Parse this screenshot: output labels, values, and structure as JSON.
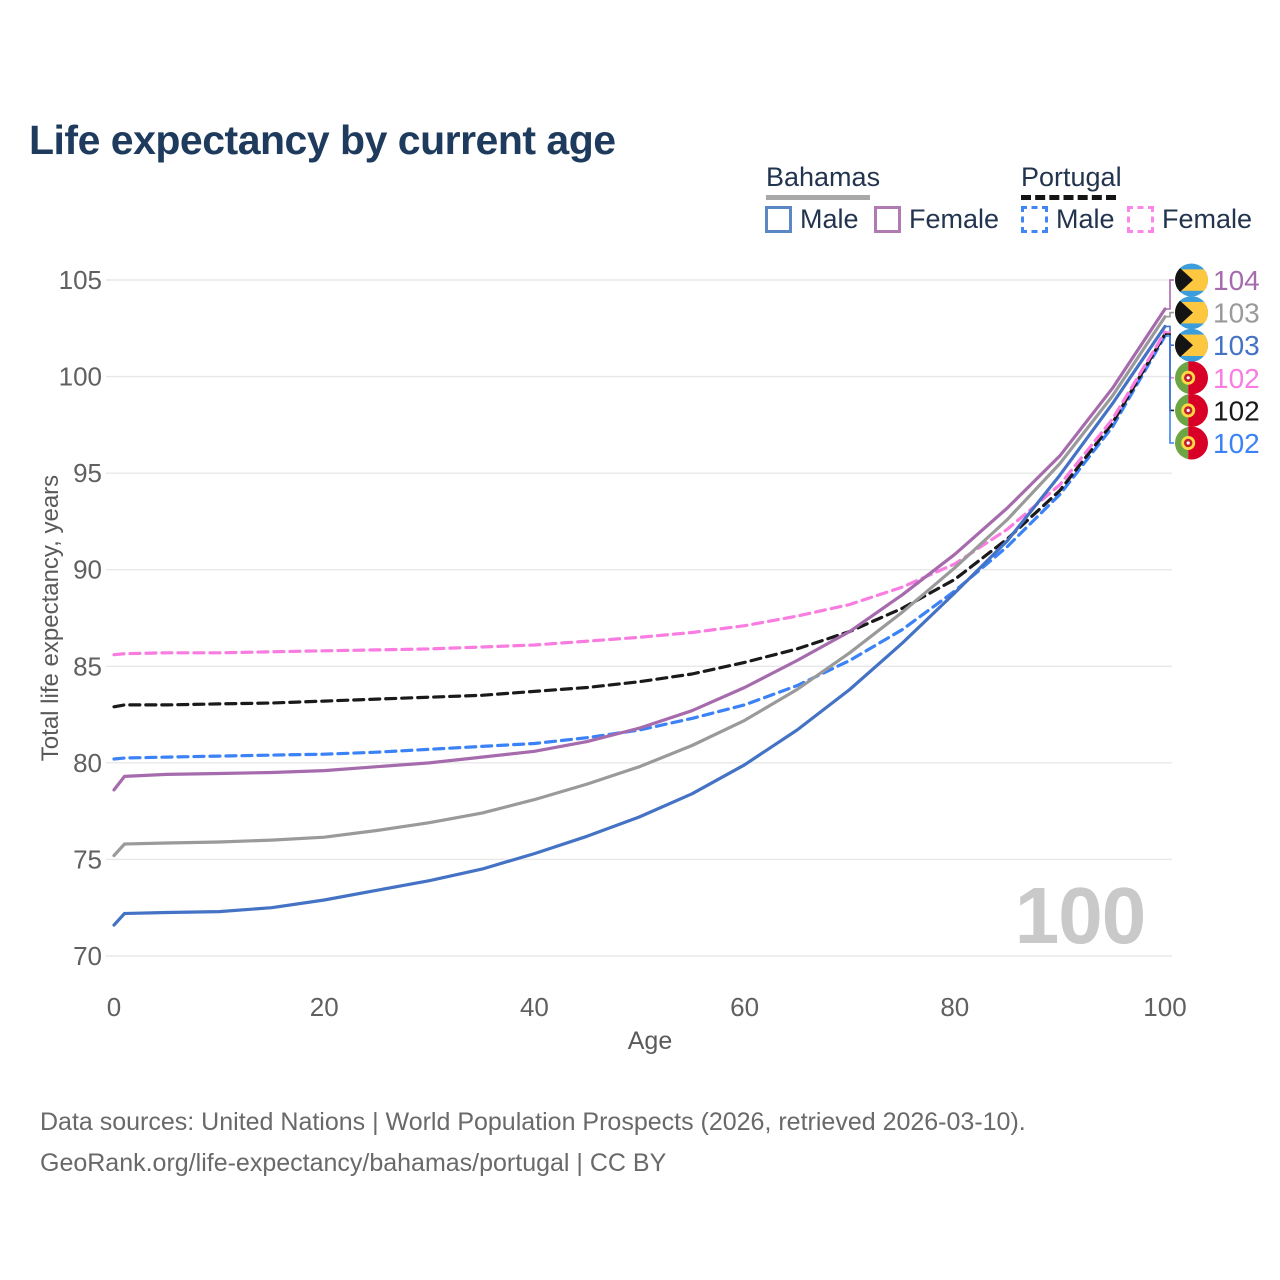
{
  "title": "Life expectancy by current age",
  "legend": {
    "bahamas": {
      "name": "Bahamas",
      "male": "Male",
      "female": "Female",
      "line_style": "solid",
      "line_color": "#a8a8a8"
    },
    "portugal": {
      "name": "Portugal",
      "male": "Male",
      "female": "Female",
      "line_style": "dashed",
      "line_color": "#141414"
    }
  },
  "watermark": "100",
  "footer": {
    "line1": "Data sources: United Nations | World Population Prospects (2026, retrieved 2026-03-10).",
    "line2": "GeoRank.org/life-expectancy/bahamas/portugal | CC BY"
  },
  "colors": {
    "title": "#1e3a5c",
    "axis_text": "#606060",
    "grid": "#e8e8e8",
    "watermark": "#c9c9c9",
    "footer": "#696969",
    "bahamas_male": "#4472c4",
    "bahamas_female": "#a66bad",
    "bahamas_total": "#9a9a9a",
    "portugal_male": "#3b82f6",
    "portugal_female": "#f97ce1",
    "portugal_total": "#1a1a1a"
  },
  "chart_data": {
    "type": "line",
    "title": "Life expectancy by current age",
    "xlabel": "Age",
    "ylabel": "Total life expectancy, years",
    "xlim": [
      0,
      100
    ],
    "ylim": [
      70,
      105
    ],
    "x_ticks": [
      0,
      20,
      40,
      60,
      80,
      100
    ],
    "y_ticks": [
      70,
      75,
      80,
      85,
      90,
      95,
      100,
      105
    ],
    "grid": "horizontal",
    "legend_position": "top-right",
    "ages": [
      0,
      1,
      5,
      10,
      15,
      20,
      25,
      30,
      35,
      40,
      45,
      50,
      55,
      60,
      65,
      70,
      75,
      80,
      85,
      90,
      95,
      100
    ],
    "series": [
      {
        "id": "bahamas-female",
        "name": "Bahamas Female",
        "color": "#a66bad",
        "style": "solid",
        "flag": "bahamas",
        "end_label": "104",
        "end_label_row": 0,
        "values": [
          78.6,
          79.3,
          79.4,
          79.45,
          79.5,
          79.6,
          79.8,
          80.0,
          80.3,
          80.6,
          81.1,
          81.8,
          82.7,
          83.9,
          85.3,
          86.8,
          88.7,
          90.8,
          93.2,
          95.9,
          99.4,
          103.5
        ]
      },
      {
        "id": "bahamas-total",
        "name": "Bahamas (both sexes)",
        "color": "#9a9a9a",
        "style": "solid",
        "flag": "bahamas",
        "end_label": "103",
        "end_label_row": 1,
        "values": [
          75.2,
          75.8,
          75.85,
          75.9,
          76.0,
          76.15,
          76.5,
          76.9,
          77.4,
          78.1,
          78.9,
          79.8,
          80.9,
          82.2,
          83.8,
          85.7,
          87.8,
          90.1,
          92.6,
          95.5,
          99.0,
          103.1
        ]
      },
      {
        "id": "bahamas-male",
        "name": "Bahamas Male",
        "color": "#4472c4",
        "style": "solid",
        "flag": "bahamas",
        "end_label": "103",
        "end_label_row": 2,
        "values": [
          71.6,
          72.2,
          72.25,
          72.3,
          72.5,
          72.9,
          73.4,
          73.9,
          74.5,
          75.3,
          76.2,
          77.2,
          78.4,
          79.9,
          81.7,
          83.8,
          86.2,
          88.8,
          91.5,
          94.9,
          98.6,
          102.6
        ]
      },
      {
        "id": "portugal-female",
        "name": "Portugal Female",
        "color": "#f97ce1",
        "style": "dashed",
        "flag": "portugal",
        "end_label": "102",
        "end_label_row": 3,
        "values": [
          85.6,
          85.65,
          85.7,
          85.7,
          85.75,
          85.8,
          85.85,
          85.9,
          86.0,
          86.1,
          86.3,
          86.5,
          86.75,
          87.1,
          87.6,
          88.2,
          89.1,
          90.3,
          92.1,
          94.4,
          97.8,
          102.3
        ]
      },
      {
        "id": "portugal-total",
        "name": "Portugal (both sexes)",
        "color": "#1a1a1a",
        "style": "dashed",
        "flag": "portugal",
        "end_label": "102",
        "end_label_row": 4,
        "values": [
          82.9,
          83.0,
          83.0,
          83.05,
          83.1,
          83.2,
          83.3,
          83.4,
          83.5,
          83.7,
          83.9,
          84.2,
          84.6,
          85.2,
          85.9,
          86.8,
          88.0,
          89.5,
          91.6,
          94.1,
          97.6,
          102.2
        ]
      },
      {
        "id": "portugal-male",
        "name": "Portugal Male",
        "color": "#3b82f6",
        "style": "dashed",
        "flag": "portugal",
        "end_label": "102",
        "end_label_row": 5,
        "values": [
          80.2,
          80.25,
          80.3,
          80.35,
          80.4,
          80.45,
          80.55,
          80.7,
          80.85,
          81.0,
          81.3,
          81.7,
          82.3,
          83.0,
          84.0,
          85.3,
          86.9,
          88.9,
          91.2,
          93.9,
          97.4,
          102.1
        ]
      }
    ],
    "flag_colors": {
      "bahamas": {
        "band": "#3b9ddb",
        "gold": "#fdc740",
        "chevron": "#141414"
      },
      "portugal": {
        "green": "#6da544",
        "red": "#d80027",
        "emblem_gold": "#ffda44",
        "emblem_red": "#c41e2e"
      }
    }
  }
}
